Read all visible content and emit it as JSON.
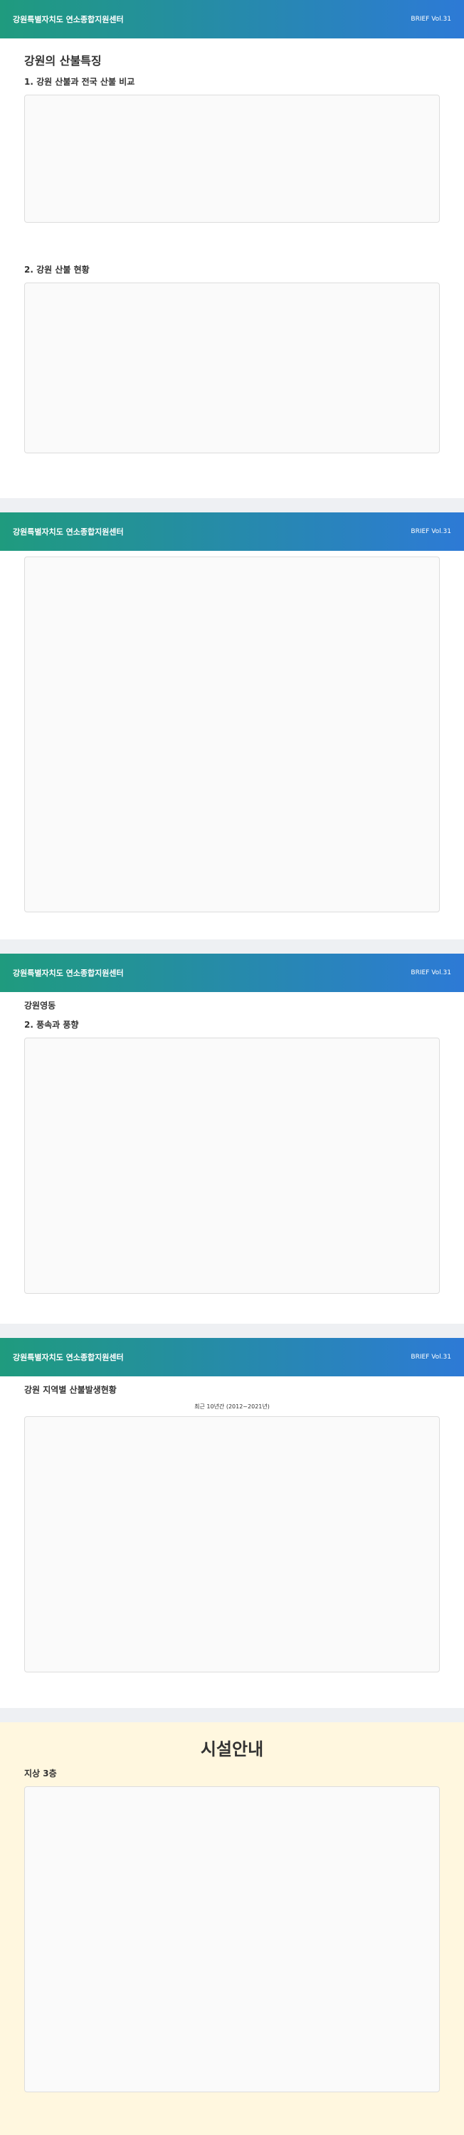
{
  "band": {
    "left": "강원특별자치도 연소종합지원센터",
    "right": "BRIEF Vol.31"
  },
  "sec1": {
    "title": "강원의 산불특징",
    "sub": "1. 강원 산불과 전국 산불 비교"
  },
  "sec2": {
    "sub": "2. 강원 산불 현황"
  },
  "sec3": {
    "title": "강원영동"
  },
  "sec4": {
    "sub": "2. 풍속과 풍향"
  },
  "sec5": {
    "title": "강원 지역별 산불발생현황",
    "range": "최근 10년간 (2012~2021년)"
  },
  "facility": {
    "title": "시설안내",
    "floor": "지상 3층"
  }
}
